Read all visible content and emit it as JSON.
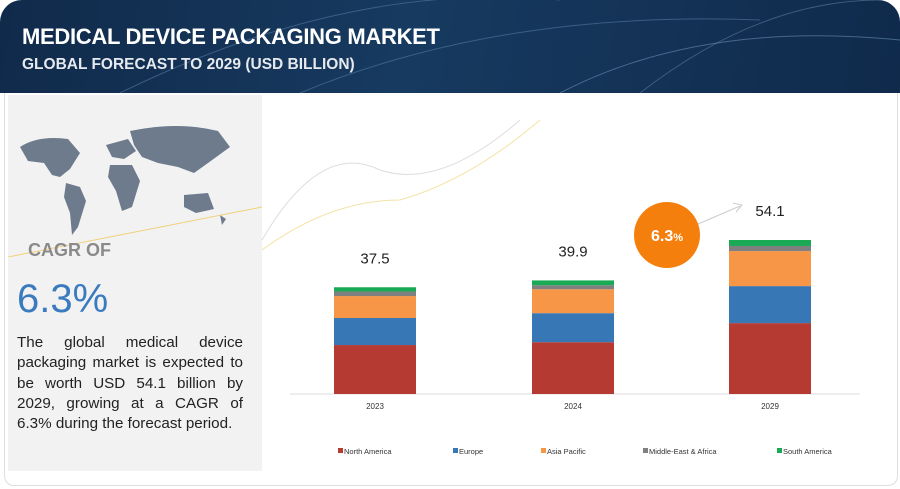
{
  "header": {
    "title": "MEDICAL DEVICE PACKAGING MARKET",
    "subtitle": "GLOBAL FORECAST TO 2029 (USD BILLION)"
  },
  "sidebar": {
    "cagr_label": "CAGR OF",
    "cagr_value": "6.3%",
    "description": "The global medical device packaging market is expected to be worth USD 54.1 billion by 2029, growing at a CAGR of 6.3% during the forecast period."
  },
  "callout": {
    "value": "6.3",
    "unit": "%",
    "color": "#f57f0c"
  },
  "chart_data": {
    "type": "bar",
    "stacked": true,
    "categories": [
      "2023",
      "2024",
      "2029"
    ],
    "totals": [
      "37.5",
      "39.9",
      "54.1"
    ],
    "series": [
      {
        "name": "North America",
        "color": "#b53a32",
        "values": [
          17.2,
          18.2,
          24.9
        ]
      },
      {
        "name": "Europe",
        "color": "#3877b5",
        "values": [
          9.5,
          10.2,
          13.0
        ]
      },
      {
        "name": "Asia Pacific",
        "color": "#f79646",
        "values": [
          7.7,
          8.4,
          12.3
        ]
      },
      {
        "name": "Middle-East & Africa",
        "color": "#808080",
        "values": [
          1.6,
          1.4,
          1.8
        ]
      },
      {
        "name": "South America",
        "color": "#1aaa55",
        "values": [
          1.5,
          1.7,
          2.1
        ]
      }
    ],
    "legend_position": "bottom",
    "grid": false
  }
}
